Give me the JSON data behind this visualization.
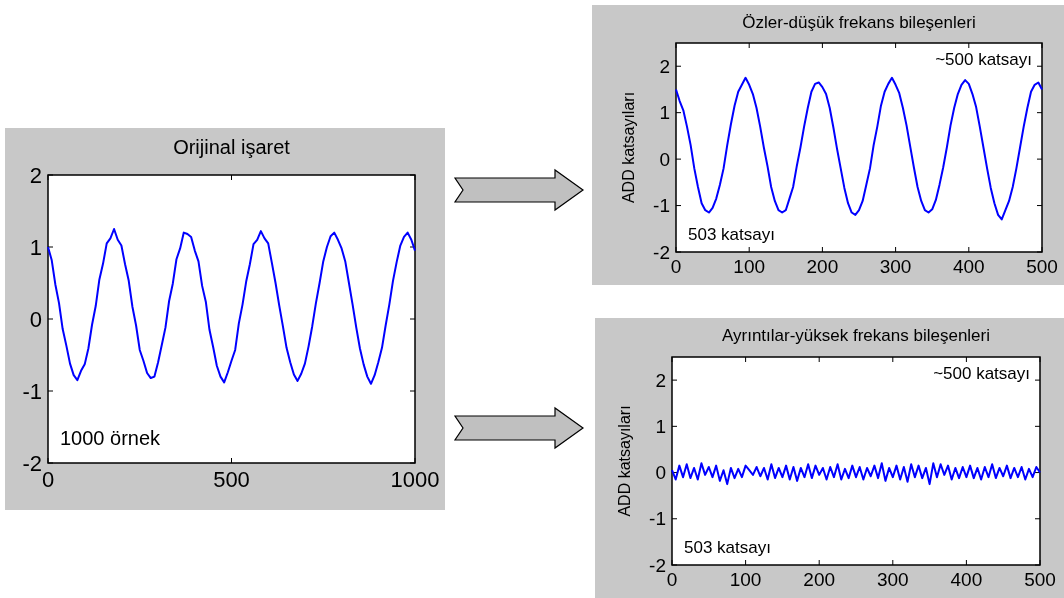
{
  "chart_data": [
    {
      "type": "line",
      "title": "Orijinal işaret",
      "annotations": [
        "1000 örnek"
      ],
      "xlim": [
        0,
        1000
      ],
      "xticks": [
        0,
        500,
        1000
      ],
      "ylim": [
        -2,
        2
      ],
      "yticks": [
        -2,
        -1,
        0,
        1,
        2
      ],
      "grid": false,
      "series": [
        {
          "color": "#0000ff",
          "x": [
            0,
            10,
            20,
            30,
            40,
            50,
            60,
            70,
            80,
            90,
            100,
            110,
            120,
            130,
            140,
            150,
            160,
            170,
            180,
            190,
            200,
            210,
            220,
            230,
            240,
            250,
            260,
            270,
            280,
            290,
            300,
            310,
            320,
            330,
            340,
            350,
            360,
            370,
            380,
            390,
            400,
            410,
            420,
            430,
            440,
            450,
            460,
            470,
            480,
            490,
            500,
            510,
            520,
            530,
            540,
            550,
            560,
            570,
            580,
            590,
            600,
            610,
            620,
            630,
            640,
            650,
            660,
            670,
            680,
            690,
            700,
            710,
            720,
            730,
            740,
            750,
            760,
            770,
            780,
            790,
            800,
            810,
            820,
            830,
            840,
            850,
            860,
            870,
            880,
            890,
            900,
            910,
            920,
            930,
            940,
            950,
            960,
            970,
            980,
            990,
            1000
          ],
          "values": [
            1.0,
            0.82,
            0.48,
            0.22,
            -0.14,
            -0.37,
            -0.62,
            -0.78,
            -0.85,
            -0.72,
            -0.63,
            -0.41,
            -0.08,
            0.18,
            0.55,
            0.77,
            1.05,
            1.12,
            1.25,
            1.1,
            1.02,
            0.76,
            0.53,
            0.17,
            -0.09,
            -0.43,
            -0.58,
            -0.75,
            -0.82,
            -0.8,
            -0.6,
            -0.36,
            -0.12,
            0.25,
            0.49,
            0.83,
            0.98,
            1.2,
            1.18,
            1.14,
            0.95,
            0.8,
            0.46,
            0.24,
            -0.15,
            -0.39,
            -0.65,
            -0.8,
            -0.88,
            -0.74,
            -0.58,
            -0.43,
            -0.06,
            0.2,
            0.52,
            0.76,
            1.04,
            1.1,
            1.22,
            1.12,
            1.05,
            0.78,
            0.5,
            0.19,
            -0.1,
            -0.4,
            -0.6,
            -0.77,
            -0.86,
            -0.76,
            -0.62,
            -0.38,
            -0.1,
            0.22,
            0.5,
            0.8,
            1.0,
            1.15,
            1.2,
            1.1,
            0.98,
            0.8,
            0.5,
            0.2,
            -0.12,
            -0.41,
            -0.63,
            -0.8,
            -0.9,
            -0.78,
            -0.6,
            -0.4,
            -0.09,
            0.2,
            0.53,
            0.79,
            1.02,
            1.14,
            1.2,
            1.1,
            0.95
          ]
        }
      ]
    },
    {
      "type": "line",
      "title": "Özler-düşük frekans bileşenleri",
      "ylabel": "ADD katsayıları",
      "annotations": [
        "~500 katsayı",
        "503 katsayı"
      ],
      "xlim": [
        0,
        500
      ],
      "xticks": [
        0,
        100,
        200,
        300,
        400,
        500
      ],
      "ylim": [
        -2,
        2.5
      ],
      "yticks": [
        -2,
        -1,
        0,
        1,
        2
      ],
      "grid": false,
      "series": [
        {
          "color": "#0000ff",
          "x": [
            0,
            5,
            10,
            15,
            20,
            25,
            30,
            35,
            40,
            45,
            50,
            55,
            60,
            65,
            70,
            75,
            80,
            85,
            90,
            95,
            100,
            105,
            110,
            115,
            120,
            125,
            130,
            135,
            140,
            145,
            150,
            155,
            160,
            165,
            170,
            175,
            180,
            185,
            190,
            195,
            200,
            205,
            210,
            215,
            220,
            225,
            230,
            235,
            240,
            245,
            250,
            255,
            260,
            265,
            270,
            275,
            280,
            285,
            290,
            295,
            300,
            305,
            310,
            315,
            320,
            325,
            330,
            335,
            340,
            345,
            350,
            355,
            360,
            365,
            370,
            375,
            380,
            385,
            390,
            395,
            400,
            405,
            410,
            415,
            420,
            425,
            430,
            435,
            440,
            445,
            450,
            455,
            460,
            465,
            470,
            475,
            480,
            485,
            490,
            495,
            500
          ],
          "values": [
            1.5,
            1.25,
            1.05,
            0.7,
            0.3,
            -0.2,
            -0.6,
            -0.95,
            -1.1,
            -1.15,
            -1.05,
            -0.85,
            -0.55,
            -0.2,
            0.3,
            0.75,
            1.15,
            1.45,
            1.6,
            1.75,
            1.6,
            1.4,
            1.1,
            0.7,
            0.25,
            -0.15,
            -0.6,
            -0.9,
            -1.1,
            -1.15,
            -1.1,
            -0.85,
            -0.6,
            -0.15,
            0.25,
            0.7,
            1.1,
            1.45,
            1.62,
            1.65,
            1.55,
            1.4,
            1.1,
            0.68,
            0.22,
            -0.2,
            -0.62,
            -0.95,
            -1.15,
            -1.2,
            -1.1,
            -0.9,
            -0.55,
            -0.2,
            0.3,
            0.7,
            1.15,
            1.45,
            1.62,
            1.75,
            1.6,
            1.42,
            1.1,
            0.72,
            0.27,
            -0.18,
            -0.6,
            -0.9,
            -1.1,
            -1.15,
            -1.08,
            -0.88,
            -0.55,
            -0.18,
            0.25,
            0.72,
            1.1,
            1.4,
            1.6,
            1.7,
            1.62,
            1.4,
            1.12,
            0.7,
            0.25,
            -0.2,
            -0.62,
            -0.95,
            -1.2,
            -1.3,
            -1.1,
            -0.9,
            -0.6,
            -0.2,
            0.25,
            0.7,
            1.1,
            1.45,
            1.6,
            1.65,
            1.5
          ]
        }
      ]
    },
    {
      "type": "line",
      "title": "Ayrıntılar-yüksek frekans bileşenleri",
      "ylabel": "ADD katsayıları",
      "annotations": [
        "~500 katsayı",
        "503 katsayı"
      ],
      "xlim": [
        0,
        500
      ],
      "xticks": [
        0,
        100,
        200,
        300,
        400,
        500
      ],
      "ylim": [
        -2,
        2.5
      ],
      "yticks": [
        -2,
        -1,
        0,
        1,
        2
      ],
      "grid": false,
      "series": [
        {
          "color": "#0000ff",
          "x": [
            0,
            5,
            10,
            15,
            20,
            25,
            30,
            35,
            40,
            45,
            50,
            55,
            60,
            65,
            70,
            75,
            80,
            85,
            90,
            95,
            100,
            105,
            110,
            115,
            120,
            125,
            130,
            135,
            140,
            145,
            150,
            155,
            160,
            165,
            170,
            175,
            180,
            185,
            190,
            195,
            200,
            205,
            210,
            215,
            220,
            225,
            230,
            235,
            240,
            245,
            250,
            255,
            260,
            265,
            270,
            275,
            280,
            285,
            290,
            295,
            300,
            305,
            310,
            315,
            320,
            325,
            330,
            335,
            340,
            345,
            350,
            355,
            360,
            365,
            370,
            375,
            380,
            385,
            390,
            395,
            400,
            405,
            410,
            415,
            420,
            425,
            430,
            435,
            440,
            445,
            450,
            455,
            460,
            465,
            470,
            475,
            480,
            485,
            490,
            495,
            500
          ],
          "values": [
            0.05,
            -0.15,
            0.15,
            -0.1,
            0.18,
            -0.12,
            0.1,
            -0.15,
            0.2,
            -0.05,
            0.12,
            -0.1,
            0.15,
            -0.18,
            0.05,
            -0.25,
            0.1,
            -0.12,
            0.08,
            -0.1,
            0.15,
            0.05,
            -0.05,
            0.12,
            -0.08,
            0.1,
            -0.15,
            0.18,
            -0.12,
            0.1,
            -0.1,
            0.15,
            -0.15,
            0.12,
            -0.18,
            0.1,
            -0.1,
            0.18,
            -0.12,
            0.15,
            -0.05,
            0.1,
            -0.15,
            0.12,
            -0.1,
            0.18,
            -0.15,
            0.08,
            -0.12,
            0.15,
            -0.1,
            0.12,
            -0.15,
            0.1,
            -0.08,
            0.15,
            -0.12,
            0.2,
            -0.18,
            0.1,
            -0.1,
            0.15,
            -0.15,
            0.12,
            -0.2,
            0.18,
            -0.1,
            0.15,
            -0.12,
            0.1,
            -0.25,
            0.2,
            -0.1,
            0.18,
            -0.05,
            0.15,
            -0.15,
            0.1,
            -0.12,
            0.12,
            -0.1,
            0.15,
            -0.12,
            0.1,
            -0.15,
            0.12,
            -0.1,
            0.18,
            -0.12,
            0.1,
            -0.08,
            0.15,
            -0.12,
            0.1,
            -0.1,
            0.12,
            -0.15,
            0.08,
            -0.1,
            0.12,
            0.0
          ]
        }
      ]
    }
  ]
}
